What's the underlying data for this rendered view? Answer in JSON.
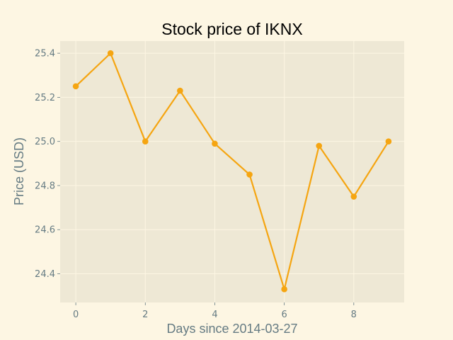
{
  "chart_data": {
    "type": "line",
    "title": "Stock price of IKNX",
    "xlabel": "Days since 2014-03-27",
    "ylabel": "Price (USD)",
    "x": [
      0,
      1,
      2,
      3,
      4,
      5,
      6,
      7,
      8,
      9
    ],
    "series": [
      {
        "values": [
          25.25,
          25.4,
          25.0,
          25.23,
          24.99,
          24.85,
          24.33,
          24.98,
          24.75,
          25.0
        ]
      }
    ],
    "xlim": [
      -0.45,
      9.45
    ],
    "ylim": [
      24.27,
      25.455
    ],
    "xticks": [
      0,
      2,
      4,
      6,
      8
    ],
    "xtick_labels": [
      "0",
      "2",
      "4",
      "6",
      "8"
    ],
    "yticks": [
      24.4,
      24.6,
      24.8,
      25.0,
      25.2,
      25.4
    ],
    "ytick_labels": [
      "24.4",
      "24.6",
      "24.8",
      "25.0",
      "25.2",
      "25.4"
    ],
    "grid": true,
    "legend": "none",
    "colors": {
      "figure_background": "#fdf6e3",
      "plot_background": "#eee8d5",
      "grid": "#fdf6e3",
      "line": "#f5a511",
      "text": "#000000",
      "axis_text": "#657b83"
    }
  }
}
